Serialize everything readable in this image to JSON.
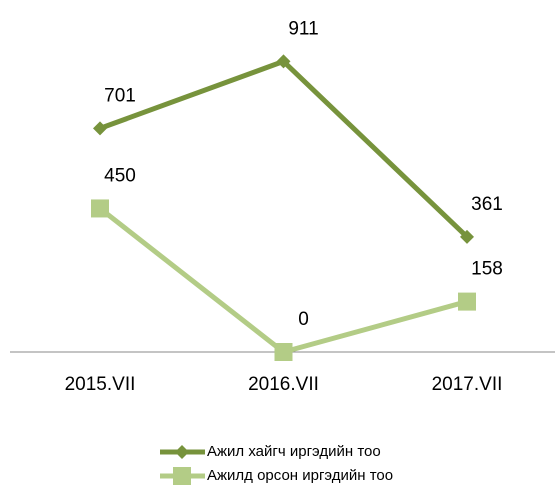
{
  "chart_data": {
    "type": "line",
    "categories": [
      "2015.VII",
      "2016.VII",
      "2017.VII"
    ],
    "series": [
      {
        "name": "Ажил хайгч иргэдийн тоо",
        "color": "#77933c",
        "marker": "diamond",
        "values": [
          701,
          911,
          361
        ]
      },
      {
        "name": "Ажилд орсон иргэдийн тоо",
        "color": "#b3cc86",
        "marker": "square",
        "values": [
          450,
          0,
          158
        ]
      }
    ],
    "ylim": [
      0,
      1000
    ],
    "legend": "bottom"
  }
}
